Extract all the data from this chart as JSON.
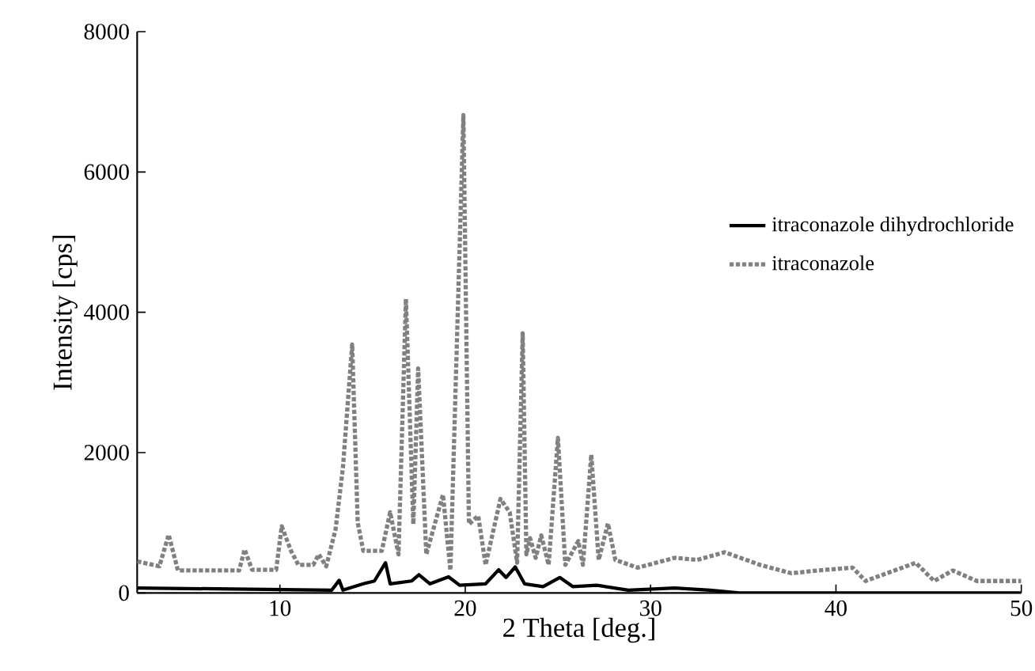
{
  "chart_data": {
    "type": "line",
    "xlabel": "2 Theta [deg.]",
    "ylabel": "Intensity [cps]",
    "xlim": [
      2.3,
      50
    ],
    "xticks": [
      10,
      20,
      30,
      40,
      50
    ],
    "ylim": [
      0,
      8000
    ],
    "yticks": [
      0,
      2000,
      4000,
      6000,
      8000
    ],
    "grid": false,
    "legend": "right",
    "marker": "none",
    "series": [
      {
        "name": "itraconazole dihydrochloride",
        "color": "#000000",
        "line_style": "solid",
        "x": [
          2.3,
          12.8,
          13.2,
          13.4,
          14.5,
          15.1,
          15.7,
          15.95,
          17.1,
          17.5,
          18.1,
          19.1,
          19.7,
          21.1,
          21.8,
          22.2,
          22.7,
          23.2,
          24.2,
          25.1,
          25.8,
          27.1,
          28.8,
          31.3,
          33.2,
          34.8,
          50
        ],
        "values": [
          70,
          40,
          180,
          40,
          130,
          170,
          430,
          130,
          170,
          260,
          130,
          230,
          110,
          130,
          330,
          220,
          370,
          130,
          90,
          220,
          90,
          110,
          40,
          70,
          40,
          0,
          0
        ]
      },
      {
        "name": "itraconazole",
        "color": "#808080",
        "line_style": "dotted",
        "x": [
          2.3,
          3.5,
          4.0,
          4.5,
          7.8,
          8.1,
          8.5,
          9.8,
          10.1,
          10.6,
          11.0,
          11.8,
          12.1,
          12.5,
          13.0,
          13.4,
          13.9,
          14.2,
          14.5,
          15.5,
          15.95,
          16.4,
          16.8,
          17.2,
          17.46,
          17.9,
          18.8,
          19.2,
          19.9,
          20.2,
          20.7,
          21.1,
          21.9,
          22.4,
          22.8,
          23.1,
          23.3,
          23.5,
          23.8,
          24.1,
          24.5,
          25.0,
          25.4,
          26.1,
          26.35,
          26.8,
          27.2,
          27.7,
          28.1,
          29.3,
          31.3,
          32.5,
          34.0,
          35.9,
          37.6,
          39.0,
          40.9,
          41.6,
          44.3,
          45.3,
          46.3,
          47.6,
          50
        ],
        "values": [
          450,
          380,
          830,
          320,
          320,
          620,
          330,
          330,
          950,
          600,
          400,
          400,
          550,
          380,
          900,
          1780,
          3540,
          1000,
          600,
          600,
          1150,
          550,
          4190,
          980,
          3200,
          550,
          1400,
          320,
          6810,
          980,
          1100,
          400,
          1340,
          1150,
          430,
          3700,
          550,
          780,
          500,
          820,
          400,
          2210,
          400,
          740,
          400,
          1970,
          470,
          990,
          470,
          360,
          500,
          470,
          580,
          400,
          280,
          320,
          360,
          170,
          430,
          170,
          320,
          170,
          170
        ]
      }
    ]
  }
}
